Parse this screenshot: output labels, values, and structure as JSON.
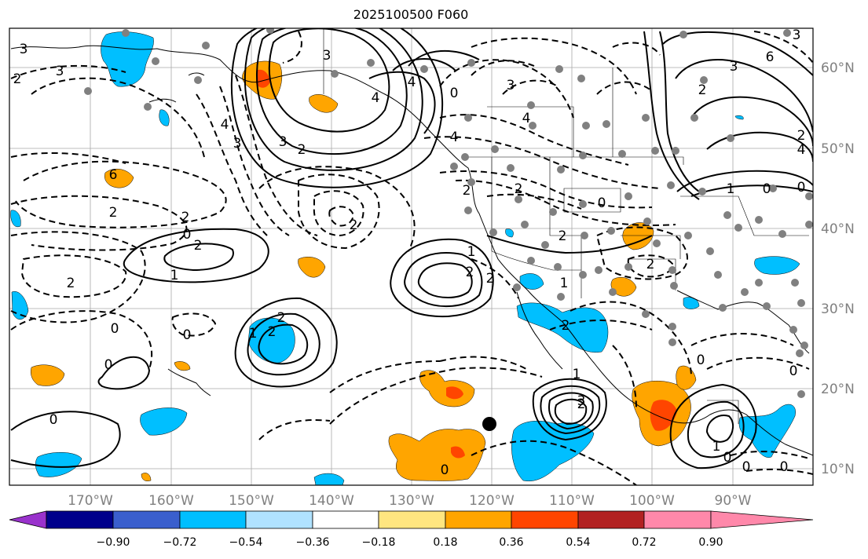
{
  "title": "2025100500 F060",
  "lon_labels": [
    "170°W",
    "160°W",
    "150°W",
    "140°W",
    "130°W",
    "120°W",
    "110°W",
    "100°W",
    "90°W"
  ],
  "lat_labels": [
    "60°N",
    "50°N",
    "40°N",
    "30°N",
    "20°N",
    "10°N"
  ],
  "colorbar": {
    "ticks": [
      "−0.90",
      "−0.72",
      "−0.54",
      "−0.36",
      "−0.18",
      "0.18",
      "0.36",
      "0.54",
      "0.72",
      "0.90"
    ],
    "colors": [
      "#9932cc",
      "#00008b",
      "#3a5fcd",
      "#00bfff",
      "#b0e2ff",
      "#ffffff",
      "#ffe680",
      "#ffa500",
      "#ff4500",
      "#b22222",
      "#ff88aa"
    ]
  },
  "contour_labels": {
    "l1": "3",
    "l2": "2",
    "l3": "3",
    "l4": "4",
    "l5": "3",
    "l6": "2",
    "l7": "3",
    "l8": "4",
    "l9": "0",
    "l10": "3",
    "l11": "4",
    "l12": "3",
    "l13": "2",
    "l14": "1",
    "l15": "0",
    "l16": "2",
    "l17": "0",
    "l18": "2",
    "l19": "6",
    "l20": "2",
    "l21": "2",
    "l22": "0",
    "l23": "2",
    "l24": "1",
    "l25": "2",
    "l26": "2",
    "l27": "0",
    "l28": "2",
    "l29": "2",
    "l30": "1",
    "l31": "1",
    "l32": "2",
    "l33": "2",
    "l34": "2",
    "l35": "0",
    "l36": "0",
    "l37": "0",
    "l38": "0",
    "l39": "2",
    "l40": "1",
    "l41": "3",
    "l42": "0",
    "l43": "1",
    "l44": "0",
    "l45": "0",
    "l46": "0",
    "l47": "0",
    "l48": "2",
    "l49": "2",
    "l50": "6",
    "l51": "3",
    "l52": "4",
    "l53": "2",
    "l54": "0",
    "l55": "1",
    "l56": "4",
    "l57": "4",
    "l58": "3"
  }
}
